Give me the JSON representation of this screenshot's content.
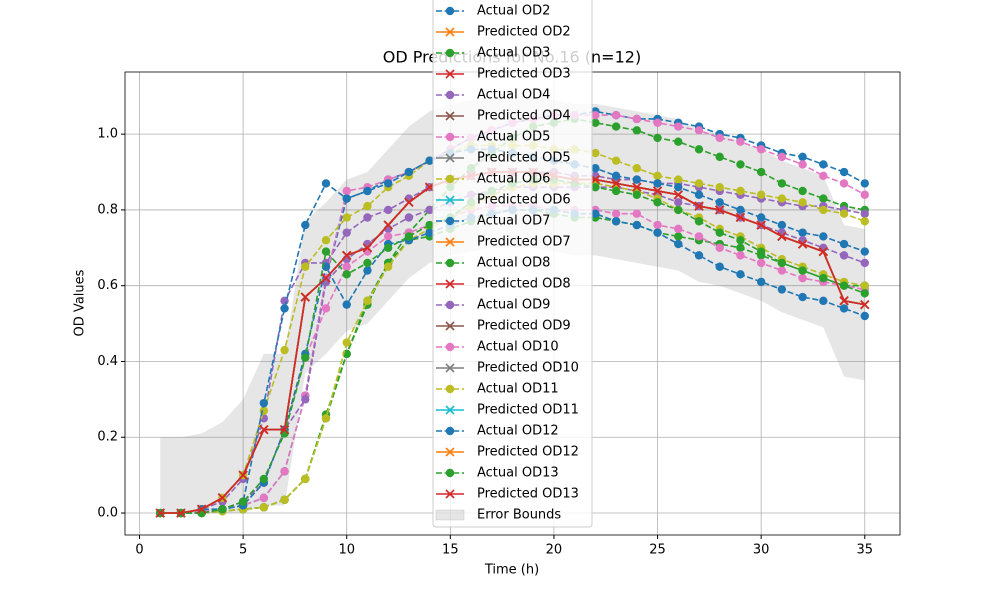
{
  "chart_data": {
    "type": "line",
    "title": "OD Predictions for No.16 (n=12)",
    "xlabel": "Time (h)",
    "ylabel": "OD Values",
    "x": [
      1,
      2,
      3,
      4,
      5,
      6,
      7,
      8,
      9,
      10,
      11,
      12,
      13,
      14,
      15,
      16,
      17,
      18,
      19,
      20,
      21,
      22,
      23,
      24,
      25,
      26,
      27,
      28,
      29,
      30,
      31,
      32,
      33,
      34,
      35
    ],
    "xlim": [
      -0.7,
      36.7
    ],
    "xticks": [
      0,
      5,
      10,
      15,
      20,
      25,
      30,
      35
    ],
    "ylim": [
      -0.058,
      1.164
    ],
    "yticks": [
      {
        "value": 0,
        "label": "0.0"
      },
      {
        "value": 0.2,
        "label": "0.2"
      },
      {
        "value": 0.4,
        "label": "0.4"
      },
      {
        "value": 0.6,
        "label": "0.6"
      },
      {
        "value": 0.8,
        "label": "0.8"
      },
      {
        "value": 1,
        "label": "1.0"
      }
    ],
    "grid": true,
    "legend": "upper center",
    "series": [
      {
        "name": "Actual OD2",
        "color": "#1f77b4",
        "style": "dashed",
        "marker": "o",
        "values": [
          0,
          0,
          0.005,
          0.01,
          0.02,
          0.04,
          0.11,
          0.31,
          0.62,
          0.83,
          0.85,
          0.88,
          0.9,
          0.93,
          0.96,
          0.99,
          1.01,
          1.03,
          1.04,
          1.05,
          1.05,
          1.06,
          1.05,
          1.04,
          1.04,
          1.03,
          1.02,
          1,
          0.99,
          0.97,
          0.95,
          0.94,
          0.92,
          0.9,
          0.87
        ]
      },
      {
        "name": "Predicted OD2",
        "color": "#ff7f0e",
        "style": "solid",
        "marker": "x",
        "values": [
          0,
          0,
          0.01,
          0.04,
          0.1,
          0.22,
          0.22,
          0.57,
          0.62,
          0.68,
          0.7,
          0.76,
          0.82,
          0.86,
          0.88,
          0.89,
          0.9,
          0.9,
          0.9,
          0.89,
          0.88,
          0.88,
          0.87,
          0.86,
          0.85,
          0.84,
          0.81,
          0.8,
          0.78,
          0.76,
          0.73,
          0.71,
          0.69,
          0.56,
          0.55
        ]
      },
      {
        "name": "Actual OD3",
        "color": "#2ca02c",
        "style": "dashed",
        "marker": "o",
        "values": [
          0,
          0,
          0,
          0.005,
          0.01,
          0.015,
          0.035,
          0.09,
          0.25,
          0.42,
          0.55,
          0.66,
          0.74,
          0.8,
          0.86,
          0.91,
          0.95,
          0.99,
          1.02,
          1.03,
          1.04,
          1.03,
          1.02,
          1.01,
          0.99,
          0.98,
          0.96,
          0.94,
          0.92,
          0.9,
          0.87,
          0.85,
          0.83,
          0.81,
          0.8
        ]
      },
      {
        "name": "Predicted OD3",
        "color": "#d62728",
        "style": "solid",
        "marker": "x",
        "values": [
          0,
          0,
          0.01,
          0.04,
          0.1,
          0.22,
          0.22,
          0.57,
          0.62,
          0.68,
          0.7,
          0.76,
          0.82,
          0.86,
          0.88,
          0.89,
          0.9,
          0.9,
          0.9,
          0.89,
          0.88,
          0.88,
          0.87,
          0.86,
          0.85,
          0.84,
          0.81,
          0.8,
          0.78,
          0.76,
          0.73,
          0.71,
          0.69,
          0.56,
          0.55
        ]
      },
      {
        "name": "Actual OD4",
        "color": "#9467bd",
        "style": "dashed",
        "marker": "o",
        "values": [
          0,
          0,
          0.01,
          0.03,
          0.09,
          0.25,
          0.56,
          0.66,
          0.66,
          0.74,
          0.78,
          0.8,
          0.83,
          0.86,
          0.88,
          0.89,
          0.9,
          0.9,
          0.9,
          0.9,
          0.89,
          0.89,
          0.88,
          0.88,
          0.87,
          0.87,
          0.86,
          0.85,
          0.84,
          0.83,
          0.82,
          0.81,
          0.81,
          0.8,
          0.79
        ]
      },
      {
        "name": "Predicted OD4",
        "color": "#8c564b",
        "style": "solid",
        "marker": "x",
        "values": [
          0,
          0,
          0.01,
          0.04,
          0.1,
          0.22,
          0.22,
          0.57,
          0.62,
          0.68,
          0.7,
          0.76,
          0.82,
          0.86,
          0.88,
          0.89,
          0.9,
          0.9,
          0.9,
          0.89,
          0.88,
          0.88,
          0.87,
          0.86,
          0.85,
          0.84,
          0.81,
          0.8,
          0.78,
          0.76,
          0.73,
          0.71,
          0.69,
          0.56,
          0.55
        ]
      },
      {
        "name": "Actual OD5",
        "color": "#e377c2",
        "style": "dashed",
        "marker": "o",
        "values": [
          0,
          0,
          0.005,
          0.01,
          0.02,
          0.04,
          0.11,
          0.31,
          0.62,
          0.85,
          0.86,
          0.88,
          0.9,
          0.93,
          0.96,
          0.99,
          1.01,
          1.03,
          1.04,
          1.05,
          1.05,
          1.05,
          1.05,
          1.04,
          1.03,
          1.02,
          1.01,
          0.99,
          0.98,
          0.96,
          0.94,
          0.92,
          0.89,
          0.87,
          0.84
        ]
      },
      {
        "name": "Predicted OD5",
        "color": "#7f7f7f",
        "style": "solid",
        "marker": "x",
        "values": [
          0,
          0,
          0.01,
          0.04,
          0.1,
          0.22,
          0.22,
          0.57,
          0.62,
          0.68,
          0.7,
          0.76,
          0.82,
          0.86,
          0.88,
          0.89,
          0.9,
          0.9,
          0.9,
          0.89,
          0.88,
          0.88,
          0.87,
          0.86,
          0.85,
          0.84,
          0.81,
          0.8,
          0.78,
          0.76,
          0.73,
          0.71,
          0.69,
          0.56,
          0.55
        ]
      },
      {
        "name": "Actual OD6",
        "color": "#bcbd22",
        "style": "dashed",
        "marker": "o",
        "values": [
          0,
          0,
          0.01,
          0.04,
          0.1,
          0.27,
          0.43,
          0.65,
          0.72,
          0.78,
          0.81,
          0.86,
          0.89,
          0.93,
          0.95,
          0.97,
          0.97,
          0.97,
          0.97,
          0.96,
          0.96,
          0.95,
          0.93,
          0.91,
          0.89,
          0.88,
          0.87,
          0.86,
          0.85,
          0.84,
          0.83,
          0.82,
          0.8,
          0.79,
          0.77
        ]
      },
      {
        "name": "Predicted OD6",
        "color": "#17becf",
        "style": "solid",
        "marker": "x",
        "values": [
          0,
          0,
          0.01,
          0.04,
          0.1,
          0.22,
          0.22,
          0.57,
          0.62,
          0.68,
          0.7,
          0.76,
          0.82,
          0.86,
          0.88,
          0.89,
          0.9,
          0.9,
          0.9,
          0.89,
          0.88,
          0.88,
          0.87,
          0.86,
          0.85,
          0.84,
          0.81,
          0.8,
          0.78,
          0.76,
          0.73,
          0.71,
          0.69,
          0.56,
          0.55
        ]
      },
      {
        "name": "Actual OD7",
        "color": "#1f77b4",
        "style": "dashed",
        "marker": "o",
        "values": [
          0,
          0,
          0.01,
          0.01,
          0.03,
          0.29,
          0.54,
          0.76,
          0.87,
          0.83,
          0.85,
          0.87,
          0.9,
          0.93,
          0.95,
          0.96,
          0.96,
          0.95,
          0.94,
          0.93,
          0.92,
          0.91,
          0.89,
          0.88,
          0.87,
          0.86,
          0.84,
          0.82,
          0.8,
          0.78,
          0.76,
          0.74,
          0.73,
          0.71,
          0.69
        ]
      },
      {
        "name": "Predicted OD7",
        "color": "#ff7f0e",
        "style": "solid",
        "marker": "x",
        "values": [
          0,
          0,
          0.01,
          0.04,
          0.1,
          0.22,
          0.22,
          0.57,
          0.62,
          0.68,
          0.7,
          0.76,
          0.82,
          0.86,
          0.88,
          0.89,
          0.9,
          0.9,
          0.9,
          0.89,
          0.88,
          0.88,
          0.87,
          0.86,
          0.85,
          0.84,
          0.81,
          0.8,
          0.78,
          0.76,
          0.73,
          0.71,
          0.69,
          0.56,
          0.55
        ]
      },
      {
        "name": "Actual OD8",
        "color": "#2ca02c",
        "style": "dashed",
        "marker": "o",
        "values": [
          0,
          0,
          0,
          0.005,
          0.01,
          0.015,
          0.035,
          0.09,
          0.26,
          0.42,
          0.56,
          0.66,
          0.72,
          0.73,
          0.75,
          0.77,
          0.79,
          0.8,
          0.8,
          0.79,
          0.78,
          0.78,
          0.77,
          0.76,
          0.74,
          0.73,
          0.72,
          0.71,
          0.7,
          0.68,
          0.66,
          0.64,
          0.62,
          0.6,
          0.6
        ]
      },
      {
        "name": "Predicted OD8",
        "color": "#d62728",
        "style": "solid",
        "marker": "x",
        "values": [
          0,
          0,
          0.01,
          0.04,
          0.1,
          0.22,
          0.22,
          0.57,
          0.62,
          0.68,
          0.7,
          0.76,
          0.82,
          0.86,
          0.88,
          0.89,
          0.9,
          0.9,
          0.9,
          0.89,
          0.88,
          0.88,
          0.87,
          0.86,
          0.85,
          0.84,
          0.81,
          0.8,
          0.78,
          0.76,
          0.73,
          0.71,
          0.69,
          0.56,
          0.55
        ]
      },
      {
        "name": "Actual OD9",
        "color": "#9467bd",
        "style": "dashed",
        "marker": "o",
        "values": [
          0,
          0,
          0,
          0.01,
          0.03,
          0.08,
          0.22,
          0.3,
          0.61,
          0.67,
          0.71,
          0.75,
          0.78,
          0.8,
          0.82,
          0.84,
          0.85,
          0.86,
          0.86,
          0.86,
          0.86,
          0.86,
          0.86,
          0.85,
          0.84,
          0.82,
          0.81,
          0.8,
          0.78,
          0.76,
          0.74,
          0.72,
          0.7,
          0.68,
          0.66
        ]
      },
      {
        "name": "Predicted OD9",
        "color": "#8c564b",
        "style": "solid",
        "marker": "x",
        "values": [
          0,
          0,
          0.01,
          0.04,
          0.1,
          0.22,
          0.22,
          0.57,
          0.62,
          0.68,
          0.7,
          0.76,
          0.82,
          0.86,
          0.88,
          0.89,
          0.9,
          0.9,
          0.9,
          0.89,
          0.88,
          0.88,
          0.87,
          0.86,
          0.85,
          0.84,
          0.81,
          0.8,
          0.78,
          0.76,
          0.73,
          0.71,
          0.69,
          0.56,
          0.55
        ]
      },
      {
        "name": "Actual OD10",
        "color": "#e377c2",
        "style": "dashed",
        "marker": "o",
        "values": [
          0,
          0,
          0,
          0.01,
          0.02,
          0.08,
          0.22,
          0.41,
          0.54,
          0.65,
          0.69,
          0.73,
          0.74,
          0.76,
          0.78,
          0.8,
          0.81,
          0.81,
          0.81,
          0.8,
          0.8,
          0.8,
          0.79,
          0.79,
          0.76,
          0.75,
          0.73,
          0.7,
          0.68,
          0.66,
          0.64,
          0.62,
          0.61,
          0.6,
          0.59
        ]
      },
      {
        "name": "Predicted OD10",
        "color": "#7f7f7f",
        "style": "solid",
        "marker": "x",
        "values": [
          0,
          0,
          0.01,
          0.04,
          0.1,
          0.22,
          0.22,
          0.57,
          0.62,
          0.68,
          0.7,
          0.76,
          0.82,
          0.86,
          0.88,
          0.89,
          0.9,
          0.9,
          0.9,
          0.89,
          0.88,
          0.88,
          0.87,
          0.86,
          0.85,
          0.84,
          0.81,
          0.8,
          0.78,
          0.76,
          0.73,
          0.71,
          0.69,
          0.56,
          0.55
        ]
      },
      {
        "name": "Actual OD11",
        "color": "#bcbd22",
        "style": "dashed",
        "marker": "o",
        "values": [
          0,
          0,
          0,
          0.005,
          0.01,
          0.015,
          0.035,
          0.09,
          0.25,
          0.45,
          0.56,
          0.65,
          0.72,
          0.75,
          0.78,
          0.81,
          0.84,
          0.86,
          0.87,
          0.87,
          0.87,
          0.87,
          0.86,
          0.85,
          0.83,
          0.8,
          0.78,
          0.75,
          0.73,
          0.7,
          0.67,
          0.65,
          0.63,
          0.61,
          0.6
        ]
      },
      {
        "name": "Predicted OD11",
        "color": "#17becf",
        "style": "solid",
        "marker": "x",
        "values": [
          0,
          0,
          0.01,
          0.04,
          0.1,
          0.22,
          0.22,
          0.57,
          0.62,
          0.68,
          0.7,
          0.76,
          0.82,
          0.86,
          0.88,
          0.89,
          0.9,
          0.9,
          0.9,
          0.89,
          0.88,
          0.88,
          0.87,
          0.86,
          0.85,
          0.84,
          0.81,
          0.8,
          0.78,
          0.76,
          0.73,
          0.71,
          0.69,
          0.56,
          0.55
        ]
      },
      {
        "name": "Actual OD12",
        "color": "#1f77b4",
        "style": "dashed",
        "marker": "o",
        "values": [
          0,
          0,
          0,
          0.01,
          0.02,
          0.08,
          0.22,
          0.42,
          0.65,
          0.55,
          0.64,
          0.71,
          0.72,
          0.74,
          0.76,
          0.78,
          0.79,
          0.8,
          0.8,
          0.8,
          0.79,
          0.79,
          0.77,
          0.76,
          0.74,
          0.71,
          0.68,
          0.65,
          0.63,
          0.61,
          0.59,
          0.57,
          0.56,
          0.54,
          0.52
        ]
      },
      {
        "name": "Predicted OD12",
        "color": "#ff7f0e",
        "style": "solid",
        "marker": "x",
        "values": [
          0,
          0,
          0.01,
          0.04,
          0.1,
          0.22,
          0.22,
          0.57,
          0.62,
          0.68,
          0.7,
          0.76,
          0.82,
          0.86,
          0.88,
          0.89,
          0.9,
          0.9,
          0.9,
          0.89,
          0.88,
          0.88,
          0.87,
          0.86,
          0.85,
          0.84,
          0.81,
          0.8,
          0.78,
          0.76,
          0.73,
          0.71,
          0.69,
          0.56,
          0.55
        ]
      },
      {
        "name": "Actual OD13",
        "color": "#2ca02c",
        "style": "dashed",
        "marker": "o",
        "values": [
          0,
          0,
          0,
          0.01,
          0.03,
          0.09,
          0.21,
          0.41,
          0.69,
          0.63,
          0.66,
          0.7,
          0.73,
          0.76,
          0.78,
          0.82,
          0.85,
          0.87,
          0.88,
          0.88,
          0.87,
          0.86,
          0.85,
          0.84,
          0.82,
          0.8,
          0.77,
          0.74,
          0.72,
          0.69,
          0.66,
          0.64,
          0.62,
          0.6,
          0.58
        ]
      },
      {
        "name": "Predicted OD13",
        "color": "#d62728",
        "style": "solid",
        "marker": "x",
        "values": [
          0,
          0,
          0.01,
          0.04,
          0.1,
          0.22,
          0.22,
          0.57,
          0.62,
          0.68,
          0.7,
          0.76,
          0.82,
          0.86,
          0.88,
          0.89,
          0.9,
          0.9,
          0.9,
          0.89,
          0.88,
          0.88,
          0.87,
          0.86,
          0.85,
          0.84,
          0.81,
          0.8,
          0.78,
          0.76,
          0.73,
          0.71,
          0.69,
          0.56,
          0.55
        ]
      }
    ],
    "error_bounds": {
      "name": "Error Bounds",
      "color": "#808080",
      "lower": [
        0,
        0,
        0,
        0,
        0,
        0.02,
        0.02,
        0.37,
        0.42,
        0.48,
        0.5,
        0.56,
        0.62,
        0.66,
        0.68,
        0.69,
        0.7,
        0.7,
        0.7,
        0.69,
        0.68,
        0.68,
        0.67,
        0.66,
        0.65,
        0.64,
        0.61,
        0.6,
        0.58,
        0.56,
        0.53,
        0.51,
        0.49,
        0.36,
        0.35
      ],
      "upper": [
        0.2,
        0.2,
        0.21,
        0.24,
        0.3,
        0.42,
        0.42,
        0.77,
        0.82,
        0.88,
        0.9,
        0.96,
        1.02,
        1.06,
        1.08,
        1.09,
        1.1,
        1.1,
        1.1,
        1.09,
        1.08,
        1.08,
        1.07,
        1.06,
        1.05,
        1.04,
        1.01,
        1,
        0.98,
        0.96,
        0.93,
        0.91,
        0.89,
        0.76,
        0.75
      ]
    }
  }
}
